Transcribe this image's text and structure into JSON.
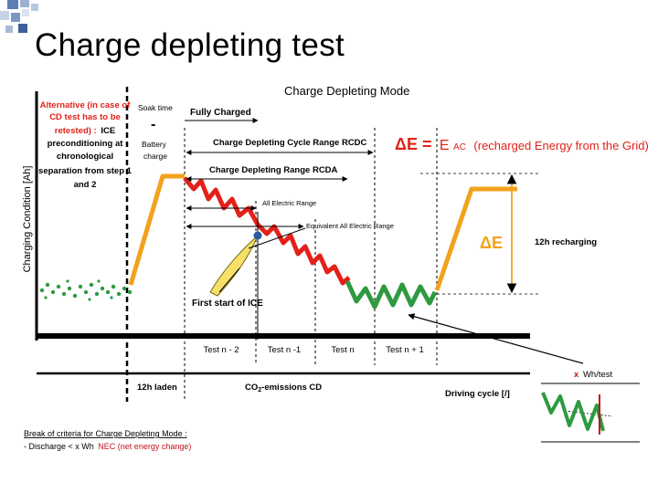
{
  "slide": {
    "title": "Charge depleting test"
  },
  "diagram": {
    "heading": "Charge Depleting Mode",
    "y_axis_label": "Charging Condition [Ah]",
    "x_axis_label": "Driving cycle [/]",
    "alternative_note": [
      "Alternative (in case of",
      "CD test has to be",
      "retested) :",
      "ICE",
      "preconditioning at",
      "chronological",
      "separation from step 1",
      "and 2"
    ],
    "soak_time": "Soak time",
    "soak_dash": "-",
    "battery_charge": [
      "Battery",
      "charge"
    ],
    "fully_charged": "Fully Charged",
    "rcdc": "Charge Depleting Cycle Range RCDC",
    "rcda": "Charge Depleting Range RCDA",
    "all_electric_range": "All Electric Range",
    "equivalent_aer": "Equivalent All Electric Range",
    "first_start_ice": "First start of ICE",
    "delta_e_formula": {
      "lhs": "ΔE =",
      "e": "E",
      "sub": "AC",
      "rest": "(recharged  Energy from the Grid)"
    },
    "delta_e": "ΔE",
    "recharging": "12h recharging",
    "test_labels": [
      "Test n - 2",
      "Test n -1",
      "Test n",
      "Test n + 1"
    ],
    "laden": "12h laden",
    "co2_pre": "CO",
    "co2_sub": "2",
    "co2_post": "-emissions CD",
    "xwh_x": "x",
    "xwh_rest": "Wh/test",
    "break_criteria": "Break of criteria for Charge Depleting Mode :",
    "discharge_pre": "- Discharge < x Wh",
    "discharge_nec": "NEC (net energy change)"
  },
  "colors": {
    "orange": "#f2a21d",
    "red": "#e32119",
    "green": "#2e9a40",
    "dark_red": "#c0141b",
    "blue": "#2c5aa0"
  }
}
